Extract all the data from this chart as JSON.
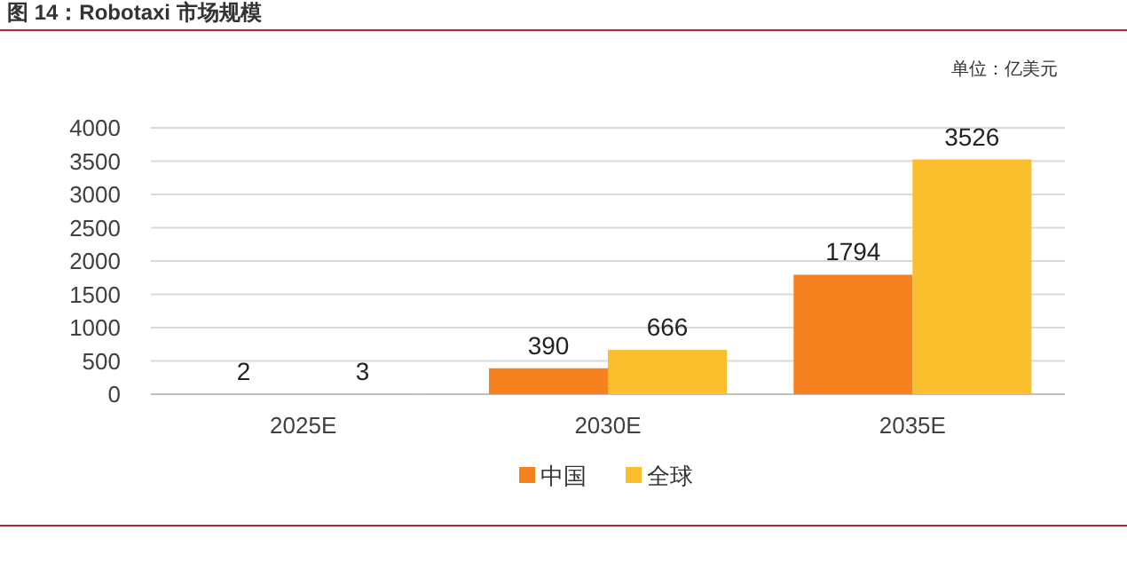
{
  "chart_data": {
    "type": "bar",
    "title": "图 14：Robotaxi 市场规模",
    "annotations": [
      "单位：亿美元"
    ],
    "categories": [
      "2025E",
      "2030E",
      "2035E"
    ],
    "series": [
      {
        "name": "中国",
        "color": "#f5821f",
        "values": [
          2,
          390,
          1794
        ]
      },
      {
        "name": "全球",
        "color": "#fbbf2e",
        "values": [
          3,
          666,
          3526
        ]
      }
    ],
    "ylim": [
      0,
      4000
    ],
    "yticks": [
      0,
      500,
      1000,
      1500,
      2000,
      2500,
      3000,
      3500,
      4000
    ],
    "grid": "y",
    "legend": "bottom",
    "data_labels": true
  }
}
